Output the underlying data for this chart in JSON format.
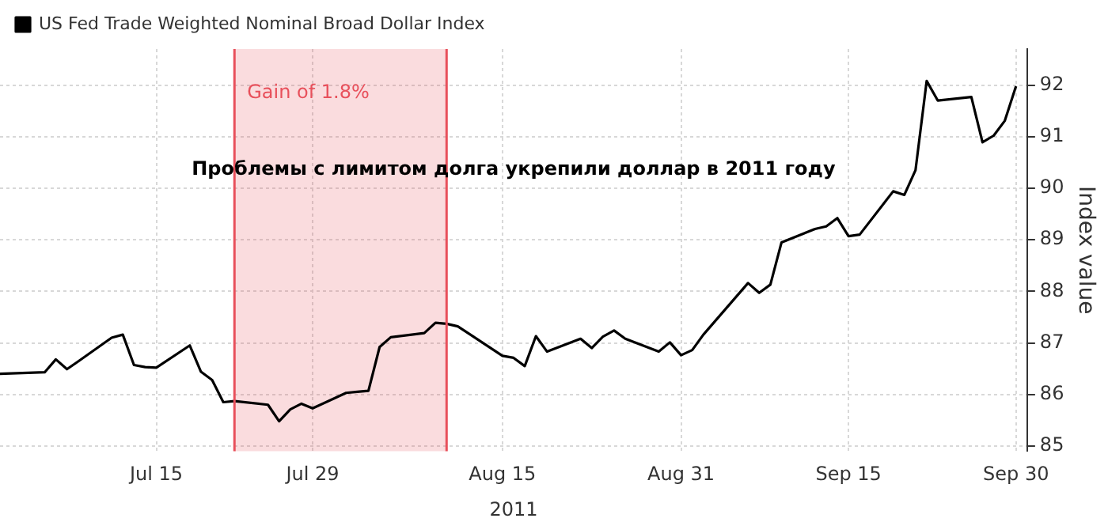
{
  "chart_data": {
    "type": "line",
    "title": "Проблемы с лимитом долга укрепили доллар в 2011 году",
    "xlabel": "2011",
    "ylabel": "Index value",
    "x": [
      "2011-07-01",
      "2011-07-05",
      "2011-07-06",
      "2011-07-07",
      "2011-07-08",
      "2011-07-11",
      "2011-07-12",
      "2011-07-13",
      "2011-07-14",
      "2011-07-15",
      "2011-07-18",
      "2011-07-19",
      "2011-07-20",
      "2011-07-21",
      "2011-07-22",
      "2011-07-25",
      "2011-07-26",
      "2011-07-27",
      "2011-07-28",
      "2011-07-29",
      "2011-08-01",
      "2011-08-02",
      "2011-08-03",
      "2011-08-04",
      "2011-08-05",
      "2011-08-08",
      "2011-08-09",
      "2011-08-10",
      "2011-08-11",
      "2011-08-12",
      "2011-08-15",
      "2011-08-16",
      "2011-08-17",
      "2011-08-18",
      "2011-08-19",
      "2011-08-22",
      "2011-08-23",
      "2011-08-24",
      "2011-08-25",
      "2011-08-26",
      "2011-08-29",
      "2011-08-30",
      "2011-08-31",
      "2011-09-01",
      "2011-09-02",
      "2011-09-06",
      "2011-09-07",
      "2011-09-08",
      "2011-09-09",
      "2011-09-12",
      "2011-09-13",
      "2011-09-14",
      "2011-09-15",
      "2011-09-16",
      "2011-09-19",
      "2011-09-20",
      "2011-09-21",
      "2011-09-22",
      "2011-09-23",
      "2011-09-26",
      "2011-09-27",
      "2011-09-28",
      "2011-09-29",
      "2011-09-30"
    ],
    "series": [
      {
        "name": "US Fed Trade Weighted Nominal Broad Dollar Index",
        "color": "#000000",
        "values": [
          86.4,
          86.43,
          86.68,
          86.49,
          86.64,
          87.1,
          87.16,
          86.57,
          86.53,
          86.52,
          86.95,
          86.44,
          86.28,
          85.85,
          85.87,
          85.8,
          85.48,
          85.71,
          85.82,
          85.73,
          86.03,
          86.05,
          86.07,
          86.92,
          87.11,
          87.19,
          87.39,
          87.37,
          87.32,
          87.18,
          86.75,
          86.71,
          86.55,
          87.13,
          86.83,
          87.08,
          86.9,
          87.12,
          87.24,
          87.08,
          86.83,
          87.01,
          86.76,
          86.86,
          87.16,
          88.16,
          87.97,
          88.13,
          88.95,
          89.21,
          89.26,
          89.42,
          89.07,
          89.1,
          89.94,
          89.87,
          90.35,
          92.08,
          91.7,
          91.77,
          90.89,
          91.02,
          91.31,
          91.98
        ]
      }
    ],
    "xticks": [
      {
        "value": "2011-07-15",
        "label": "Jul 15"
      },
      {
        "value": "2011-07-29",
        "label": "Jul 29"
      },
      {
        "value": "2011-08-15",
        "label": "Aug 15"
      },
      {
        "value": "2011-08-31",
        "label": "Aug 31"
      },
      {
        "value": "2011-09-15",
        "label": "Sep 15"
      },
      {
        "value": "2011-09-30",
        "label": "Sep 30"
      }
    ],
    "xlim": [
      "2011-07-01",
      "2011-10-01"
    ],
    "ylim": [
      84.9,
      92.7
    ],
    "yticks": [
      85,
      86,
      87,
      88,
      89,
      90,
      91,
      92
    ],
    "bands": [
      {
        "axis": "x",
        "from": "2011-07-22",
        "to": "2011-08-10",
        "label": "Gain of 1.8%",
        "color": "#e8505b"
      }
    ],
    "ref_lines": [
      {
        "axis": "x",
        "value": "2011-07-22",
        "color": "#e8505b"
      },
      {
        "axis": "x",
        "value": "2011-08-10",
        "color": "#e8505b"
      }
    ],
    "grid": true,
    "legend": "top left",
    "marker": "none",
    "line_style": "solid"
  }
}
